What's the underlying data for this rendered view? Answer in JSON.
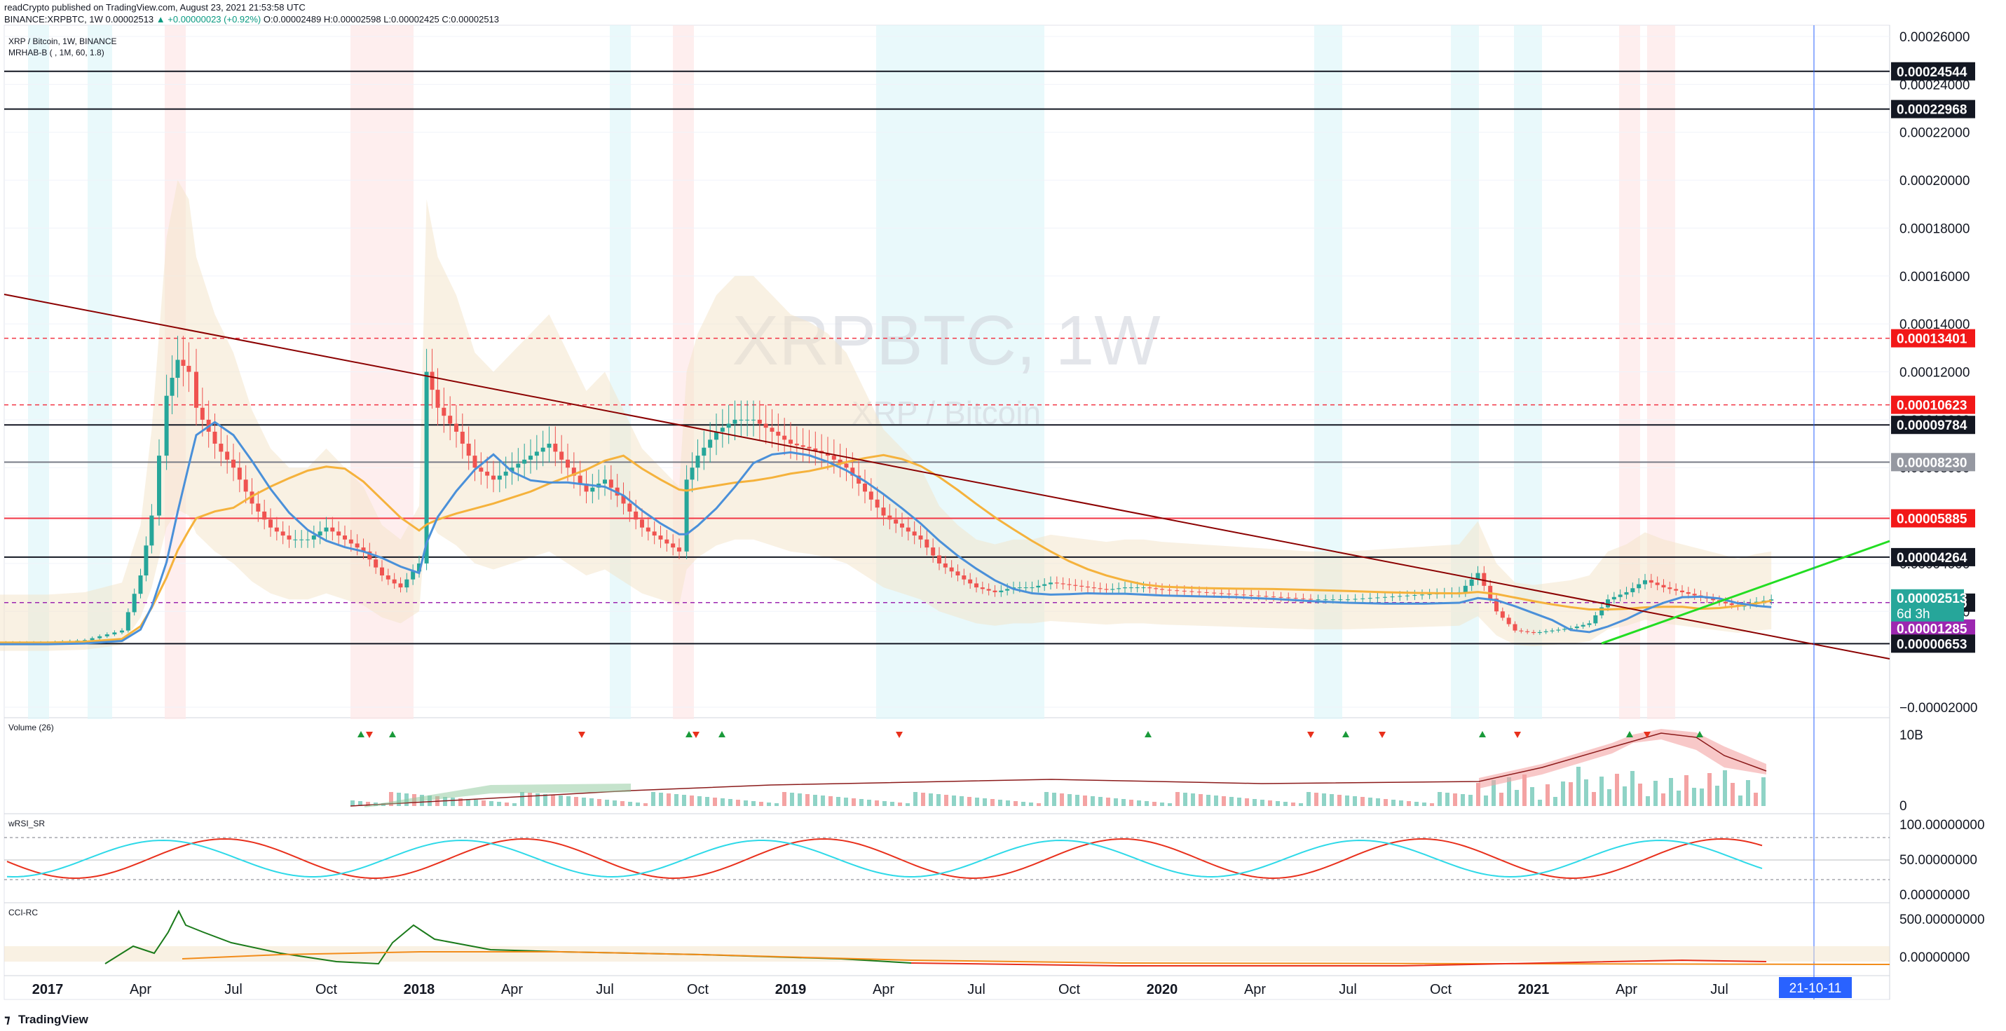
{
  "header": {
    "publish_line": "readCrypto published on TradingView.com, August 23, 2021 21:53:58 UTC",
    "symbol_line": "BINANCE:XRPBTC, 1W 0.00002513",
    "change": "▲ +0.00000023 (+0.92%)",
    "ohlc": "O:0.00002489 H:0.00002598 L:0.00002425 C:0.00002513"
  },
  "main_pane": {
    "symbol_title": "XRP / Bitcoin, 1W, BINANCE",
    "indicator_title": "MRHAB-B ( , 1M, 60, 1.8)",
    "watermark_symbol": "XRPBTC, 1W",
    "watermark_desc": "XRP / Bitcoin"
  },
  "price_axis": {
    "ticks": [
      "0.00026000",
      "0.00024000",
      "0.00022000",
      "0.00020000",
      "0.00018000",
      "0.00016000",
      "0.00014000",
      "0.00012000",
      "0.00010000",
      "0.00008000",
      "0.00006000",
      "0.00004000",
      "0.00002000",
      "−0.00002000"
    ],
    "tick_values": [
      0.00026,
      0.00024,
      0.00022,
      0.0002,
      0.00018,
      0.00016,
      0.00014,
      0.00012,
      0.0001,
      8e-05,
      6e-05,
      4e-05,
      2e-05,
      -2e-05
    ]
  },
  "levels": [
    {
      "label": "0.00024544",
      "value": 0.00024544,
      "style": "solid",
      "color": "#131722"
    },
    {
      "label": "0.00022968",
      "value": 0.00022968,
      "style": "solid",
      "color": "#131722"
    },
    {
      "label": "0.00013401",
      "value": 0.00013401,
      "style": "dashed",
      "color": "#f23645"
    },
    {
      "label": "0.00010623",
      "value": 0.00010623,
      "style": "dashed",
      "color": "#f23645"
    },
    {
      "label": "0.00009784",
      "value": 9.784e-05,
      "style": "solid",
      "color": "#131722"
    },
    {
      "label": "0.00008230",
      "value": 8.23e-05,
      "style": "solid",
      "color": "#787b86"
    },
    {
      "label": "0.00005885",
      "value": 5.885e-05,
      "style": "solid",
      "color": "#f23645"
    },
    {
      "label": "0.00004264",
      "value": 4.264e-05,
      "style": "solid",
      "color": "#131722"
    },
    {
      "label": "0.00002365",
      "value": 2.365e-05,
      "style": "dashed",
      "color": "#9c27b0"
    },
    {
      "label": "0.00000653",
      "value": 6.53e-06,
      "style": "solid",
      "color": "#131722"
    }
  ],
  "price_labels": [
    {
      "label": "0.00024544",
      "value": 0.00024544,
      "bg": "#131722"
    },
    {
      "label": "0.00022968",
      "value": 0.00022968,
      "bg": "#131722"
    },
    {
      "label": "0.00013401",
      "value": 0.00013401,
      "bg": "#f21818"
    },
    {
      "label": "0.00010623",
      "value": 0.00010623,
      "bg": "#f21818"
    },
    {
      "label": "0.00009784",
      "value": 9.784e-05,
      "bg": "#131722"
    },
    {
      "label": "0.00008230",
      "value": 8.23e-05,
      "bg": "#9598a1"
    },
    {
      "label": "0.00005885",
      "value": 5.885e-05,
      "bg": "#f21818"
    },
    {
      "label": "0.00004264",
      "value": 4.264e-05,
      "bg": "#131722"
    },
    {
      "label": "0.00002365",
      "value": 2.365e-05,
      "bg": "#131722"
    },
    {
      "label": "0.00001285",
      "value": 1.285e-05,
      "bg": "#9c27b0"
    },
    {
      "label": "0.00000653",
      "value": 6.53e-06,
      "bg": "#131722"
    }
  ],
  "last_price": {
    "label": "0.00002513",
    "countdown": "6d 3h",
    "value": 2.513e-05,
    "bg": "#26a69a"
  },
  "volume_pane": {
    "title": "Volume (26)",
    "axis_labels": [
      "10B",
      "0"
    ]
  },
  "rsi_pane": {
    "title": "wRSI_SR",
    "axis_labels": [
      "100.00000000",
      "50.00000000",
      "0.00000000"
    ]
  },
  "cci_pane": {
    "title": "CCI-RC",
    "axis_labels": [
      "500.00000000",
      "0.00000000"
    ]
  },
  "time_axis": {
    "labels": [
      {
        "text": "2017",
        "bold": true,
        "t": 2017.0
      },
      {
        "text": "Apr",
        "bold": false,
        "t": 2017.25
      },
      {
        "text": "Jul",
        "bold": false,
        "t": 2017.5
      },
      {
        "text": "Oct",
        "bold": false,
        "t": 2017.75
      },
      {
        "text": "2018",
        "bold": true,
        "t": 2018.0
      },
      {
        "text": "Apr",
        "bold": false,
        "t": 2018.25
      },
      {
        "text": "Jul",
        "bold": false,
        "t": 2018.5
      },
      {
        "text": "Oct",
        "bold": false,
        "t": 2018.75
      },
      {
        "text": "2019",
        "bold": true,
        "t": 2019.0
      },
      {
        "text": "Apr",
        "bold": false,
        "t": 2019.25
      },
      {
        "text": "Jul",
        "bold": false,
        "t": 2019.5
      },
      {
        "text": "Oct",
        "bold": false,
        "t": 2019.75
      },
      {
        "text": "2020",
        "bold": true,
        "t": 2020.0
      },
      {
        "text": "Apr",
        "bold": false,
        "t": 2020.25
      },
      {
        "text": "Jul",
        "bold": false,
        "t": 2020.5
      },
      {
        "text": "Oct",
        "bold": false,
        "t": 2020.75
      },
      {
        "text": "2021",
        "bold": true,
        "t": 2021.0
      },
      {
        "text": "Apr",
        "bold": false,
        "t": 2021.25
      },
      {
        "text": "Jul",
        "bold": false,
        "t": 2021.5
      }
    ],
    "cursor_label": "21-10-11",
    "cursor_t": 2021.78
  },
  "price_series": {
    "t": [
      2016.85,
      2017.0,
      2017.1,
      2017.2,
      2017.25,
      2017.28,
      2017.32,
      2017.35,
      2017.38,
      2017.4,
      2017.45,
      2017.5,
      2017.55,
      2017.6,
      2017.65,
      2017.7,
      2017.75,
      2017.8,
      2017.85,
      2017.9,
      2017.95,
      2018.0,
      2018.02,
      2018.05,
      2018.1,
      2018.15,
      2018.2,
      2018.25,
      2018.3,
      2018.35,
      2018.4,
      2018.45,
      2018.5,
      2018.55,
      2018.6,
      2018.65,
      2018.7,
      2018.72,
      2018.75,
      2018.8,
      2018.85,
      2018.9,
      2018.95,
      2019.0,
      2019.05,
      2019.1,
      2019.15,
      2019.2,
      2019.25,
      2019.3,
      2019.35,
      2019.4,
      2019.45,
      2019.5,
      2019.55,
      2019.6,
      2019.65,
      2019.7,
      2019.75,
      2019.8,
      2019.85,
      2019.9,
      2019.95,
      2020.0,
      2020.1,
      2020.2,
      2020.3,
      2020.4,
      2020.5,
      2020.6,
      2020.7,
      2020.8,
      2020.85,
      2020.9,
      2020.95,
      2021.0,
      2021.05,
      2021.1,
      2021.15,
      2021.2,
      2021.25,
      2021.3,
      2021.35,
      2021.4,
      2021.45,
      2021.5,
      2021.55,
      2021.6,
      2021.64
    ],
    "close": [
      7e-06,
      7e-06,
      8e-06,
      1.2e-05,
      3.5e-05,
      6e-05,
      0.00011,
      0.000125,
      0.00012,
      0.000105,
      9e-05,
      8e-05,
      6.5e-05,
      5.5e-05,
      5e-05,
      5e-05,
      5.5e-05,
      5e-05,
      4.5e-05,
      3.5e-05,
      3e-05,
      4e-05,
      0.00012,
      0.000105,
      9.5e-05,
      8e-05,
      7.5e-05,
      8e-05,
      8.5e-05,
      9e-05,
      8e-05,
      7e-05,
      7.5e-05,
      6.5e-05,
      5.5e-05,
      5e-05,
      4.5e-05,
      7.5e-05,
      8.5e-05,
      9.5e-05,
      0.0001,
      0.0001,
      9.5e-05,
      9e-05,
      8.8e-05,
      8.5e-05,
      8e-05,
      7e-05,
      6e-05,
      5.5e-05,
      5e-05,
      4e-05,
      3.5e-05,
      3e-05,
      2.8e-05,
      3e-05,
      3e-05,
      3.2e-05,
      3.1e-05,
      3e-05,
      2.9e-05,
      3e-05,
      3e-05,
      2.9e-05,
      2.8e-05,
      2.7e-05,
      2.6e-05,
      2.5e-05,
      2.5e-05,
      2.6e-05,
      2.7e-05,
      2.8e-05,
      3.6e-05,
      2e-05,
      1.2e-05,
      1.1e-05,
      1.2e-05,
      1.3e-05,
      1.5e-05,
      2.5e-05,
      2.8e-05,
      3.3e-05,
      3e-05,
      2.8e-05,
      2.6e-05,
      2.4e-05,
      2.2e-05,
      2.4e-05,
      2.5e-05
    ]
  }
}
